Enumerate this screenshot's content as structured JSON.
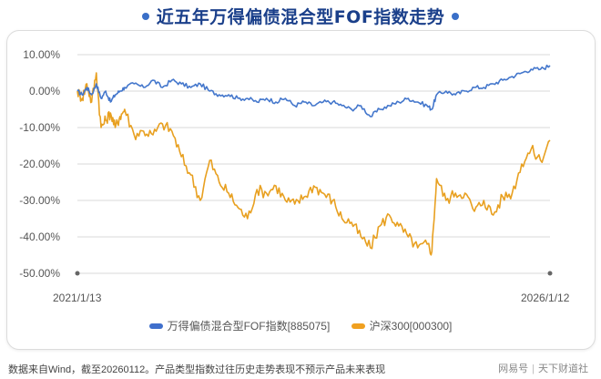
{
  "title": "近五年万得偏债混合型FOF指数走势",
  "colors": {
    "title": "#1a3f8a",
    "series_fof": "#4477cc",
    "series_hs300": "#e8a020",
    "grid": "#d9d9d9"
  },
  "y_axis": {
    "labels": [
      "10.00%",
      "0.00%",
      "-10.00%",
      "-20.00%",
      "-30.00%",
      "-40.00%",
      "-50.00%"
    ]
  },
  "x_axis": {
    "start_label": "2021/1/13",
    "end_label": "2026/1/12"
  },
  "legend": [
    {
      "label": "万得偏债混合型FOF指数[885075]",
      "color": "#4477cc"
    },
    {
      "label": "沪深300[000300]",
      "color": "#e8a020"
    }
  ],
  "footer": {
    "note": "数据来自Wind，截至20260112。产品类型指数过往历史走势表现不预示产品未来表现",
    "brand_left": "网易号",
    "brand_right": "天下财道社"
  },
  "chart_data": {
    "type": "line",
    "title": "近五年万得偏债混合型FOF指数走势",
    "xlabel": "",
    "ylabel": "",
    "ylim": [
      -50,
      10
    ],
    "yticks": [
      10,
      0,
      -10,
      -20,
      -30,
      -40,
      -50
    ],
    "x_range": [
      "2021/1/13",
      "2026/1/12"
    ],
    "grid": true,
    "legend_position": "bottom",
    "x": [
      0,
      0.01,
      0.02,
      0.03,
      0.04,
      0.05,
      0.06,
      0.07,
      0.08,
      0.09,
      0.1,
      0.12,
      0.14,
      0.16,
      0.18,
      0.2,
      0.22,
      0.24,
      0.26,
      0.28,
      0.3,
      0.32,
      0.34,
      0.36,
      0.38,
      0.4,
      0.42,
      0.44,
      0.46,
      0.48,
      0.5,
      0.52,
      0.54,
      0.56,
      0.58,
      0.6,
      0.62,
      0.64,
      0.66,
      0.68,
      0.7,
      0.72,
      0.74,
      0.75,
      0.76,
      0.78,
      0.8,
      0.82,
      0.84,
      0.86,
      0.88,
      0.9,
      0.92,
      0.94,
      0.96,
      0.98,
      1.0
    ],
    "series": [
      {
        "name": "万得偏债混合型FOF指数[885075]",
        "values": [
          0,
          -1,
          1,
          -1,
          2,
          -2,
          0,
          -3,
          -1,
          0,
          1,
          2,
          1,
          3,
          1,
          3,
          2,
          1,
          2,
          0,
          -1,
          -1,
          -2,
          -2,
          -3,
          -2,
          -3,
          -2,
          -4,
          -3,
          -4,
          -3,
          -3,
          -4,
          -5,
          -4,
          -7,
          -5,
          -4,
          -3,
          -2,
          -3,
          -4,
          -5,
          -1,
          0,
          -1,
          0,
          1,
          1,
          2,
          3,
          4,
          5,
          6,
          6,
          7
        ]
      },
      {
        "name": "沪深300[000300]",
        "values": [
          0,
          -2,
          2,
          -3,
          5,
          -10,
          -8,
          -6,
          -10,
          -7,
          -5,
          -12,
          -11,
          -12,
          -9,
          -11,
          -18,
          -23,
          -30,
          -19,
          -25,
          -28,
          -32,
          -35,
          -27,
          -28,
          -26,
          -30,
          -31,
          -29,
          -26,
          -28,
          -30,
          -35,
          -36,
          -40,
          -43,
          -37,
          -34,
          -37,
          -40,
          -43,
          -42,
          -44,
          -24,
          -30,
          -28,
          -28,
          -33,
          -30,
          -34,
          -29,
          -28,
          -20,
          -16,
          -19,
          -13.5
        ]
      }
    ]
  }
}
